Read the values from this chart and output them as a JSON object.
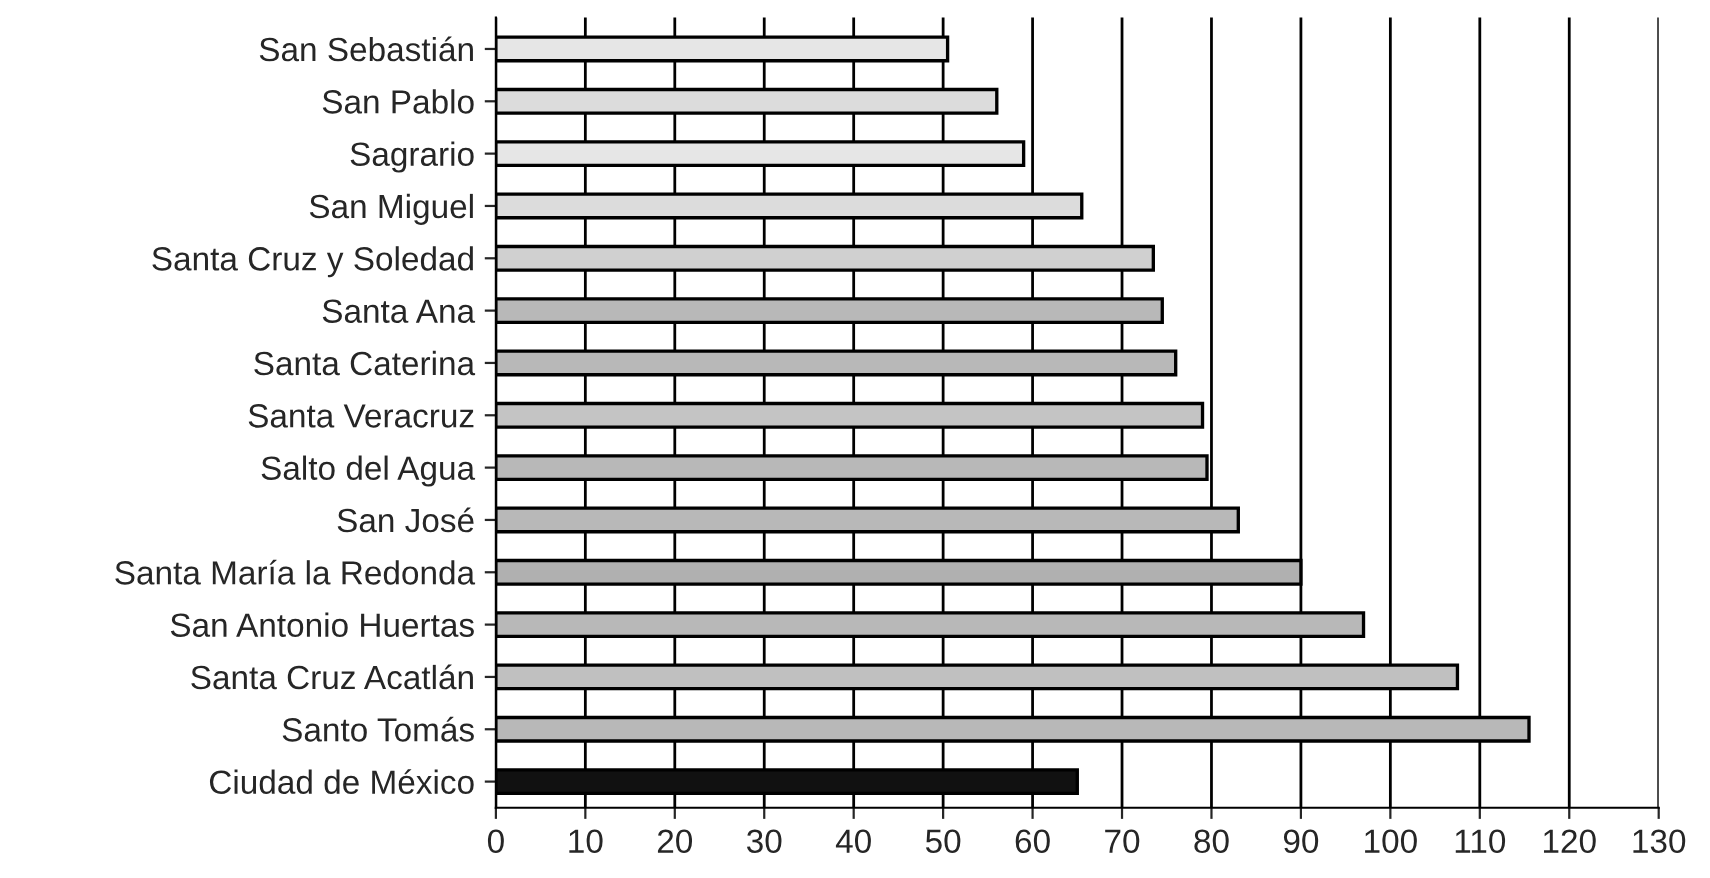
{
  "chart_data": {
    "type": "bar",
    "orientation": "horizontal",
    "categories": [
      "San Sebastián",
      "San Pablo",
      "Sagrario",
      "San Miguel",
      "Santa Cruz y Soledad",
      "Santa Ana",
      "Santa Caterina",
      "Santa Veracruz",
      "Salto del Agua",
      "San José",
      "Santa María la Redonda",
      "San Antonio Huertas",
      "Santa Cruz Acatlán",
      "Santo Tomás",
      "Ciudad de México"
    ],
    "values": [
      50.5,
      56,
      59,
      65.5,
      73.5,
      74.5,
      76,
      79,
      79.5,
      83,
      90,
      97,
      107.5,
      115.5,
      65
    ],
    "colors": [
      "#e6e6e6",
      "#dcdcdc",
      "#e6e6e6",
      "#dcdcdc",
      "#d0d0d0",
      "#b8b8b8",
      "#b8b8b8",
      "#c4c4c4",
      "#b8b8b8",
      "#b8b8b8",
      "#b0b0b0",
      "#b8b8b8",
      "#c0c0c0",
      "#b8b8b8",
      "#111111"
    ],
    "xlim": [
      0,
      130
    ],
    "xticks": [
      0,
      10,
      20,
      30,
      40,
      50,
      60,
      70,
      80,
      90,
      100,
      110,
      120,
      130
    ],
    "grid": "x"
  }
}
